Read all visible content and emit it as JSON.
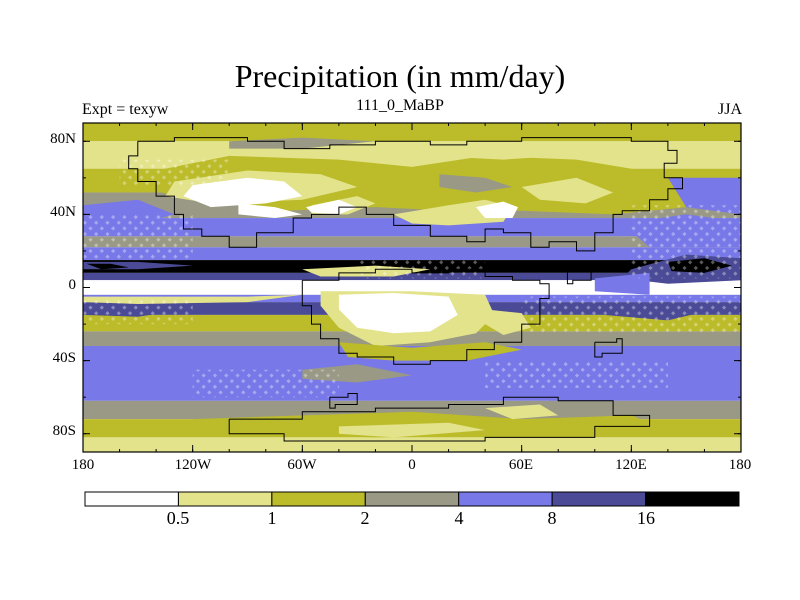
{
  "title": "Precipitation (in mm/day)",
  "left_string": "Expt = texyw",
  "center_string": "111_0_MaBP",
  "right_string": "JJA",
  "map": {
    "variable": "Precipitation",
    "units": "mm/day",
    "projection": "cylindrical equidistant",
    "lon_range": [
      -180,
      180
    ],
    "lat_range": [
      -90,
      90
    ],
    "x_ticks": [
      "180",
      "120W",
      "60W",
      "0",
      "60E",
      "120E",
      "180"
    ],
    "y_ticks": [
      "80N",
      "40N",
      "0",
      "40S",
      "80S"
    ]
  },
  "colorbar": {
    "levels": [
      "0.5",
      "1",
      "2",
      "4",
      "8",
      "16"
    ],
    "colors": [
      "#ffffff",
      "#e3e38c",
      "#bcbc2a",
      "#999985",
      "#7878e8",
      "#4a4a96",
      "#000000"
    ]
  }
}
